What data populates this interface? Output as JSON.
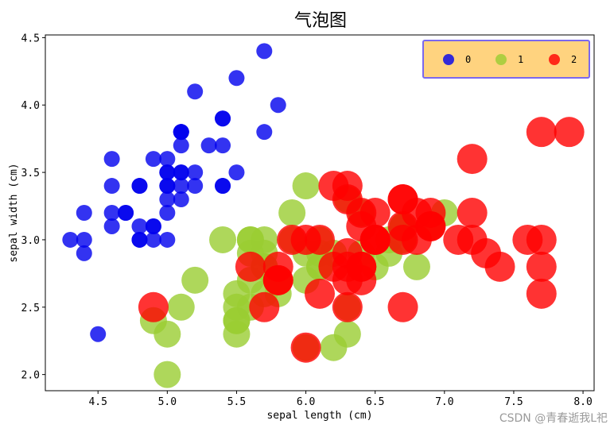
{
  "chart_data": {
    "type": "scatter",
    "title": "气泡图",
    "xlabel": "sepal length (cm)",
    "ylabel": "sepal width (cm)",
    "xlim": [
      4.12,
      8.08
    ],
    "ylim": [
      1.88,
      4.52
    ],
    "xticks": [
      4.5,
      5.0,
      5.5,
      6.0,
      6.5,
      7.0,
      7.5,
      8.0
    ],
    "xtick_labels": [
      "4.5",
      "5.0",
      "5.5",
      "6.0",
      "6.5",
      "7.0",
      "7.5",
      "8.0"
    ],
    "yticks": [
      2.0,
      2.5,
      3.0,
      3.5,
      4.0,
      4.5
    ],
    "ytick_labels": [
      "2.0",
      "2.5",
      "3.0",
      "3.5",
      "4.0",
      "4.5"
    ],
    "grid": false,
    "legend_position": "top-right",
    "legend_background": "#ffd37f",
    "legend_border": "#7b68ee",
    "series": [
      {
        "name": "0",
        "color": "#0000ee",
        "points": [
          [
            5.1,
            3.5
          ],
          [
            4.9,
            3.0
          ],
          [
            4.7,
            3.2
          ],
          [
            4.6,
            3.1
          ],
          [
            5.0,
            3.6
          ],
          [
            5.4,
            3.9
          ],
          [
            4.6,
            3.4
          ],
          [
            5.0,
            3.4
          ],
          [
            4.4,
            2.9
          ],
          [
            4.9,
            3.1
          ],
          [
            5.4,
            3.7
          ],
          [
            4.8,
            3.4
          ],
          [
            4.8,
            3.0
          ],
          [
            4.3,
            3.0
          ],
          [
            5.8,
            4.0
          ],
          [
            5.7,
            4.4
          ],
          [
            5.4,
            3.9
          ],
          [
            5.1,
            3.5
          ],
          [
            5.7,
            3.8
          ],
          [
            5.1,
            3.8
          ],
          [
            5.4,
            3.4
          ],
          [
            5.1,
            3.7
          ],
          [
            4.6,
            3.6
          ],
          [
            5.1,
            3.3
          ],
          [
            4.8,
            3.4
          ],
          [
            5.0,
            3.0
          ],
          [
            5.0,
            3.4
          ],
          [
            5.2,
            3.5
          ],
          [
            5.2,
            3.4
          ],
          [
            4.7,
            3.2
          ],
          [
            4.8,
            3.1
          ],
          [
            5.4,
            3.4
          ],
          [
            5.2,
            4.1
          ],
          [
            5.5,
            4.2
          ],
          [
            4.9,
            3.1
          ],
          [
            5.0,
            3.2
          ],
          [
            5.5,
            3.5
          ],
          [
            4.9,
            3.6
          ],
          [
            4.4,
            3.0
          ],
          [
            5.1,
            3.4
          ],
          [
            5.0,
            3.5
          ],
          [
            4.5,
            2.3
          ],
          [
            4.4,
            3.2
          ],
          [
            5.0,
            3.5
          ],
          [
            5.1,
            3.8
          ],
          [
            4.8,
            3.0
          ],
          [
            5.1,
            3.8
          ],
          [
            4.6,
            3.2
          ],
          [
            5.3,
            3.7
          ],
          [
            5.0,
            3.3
          ]
        ]
      },
      {
        "name": "1",
        "color": "#9acd32",
        "points": [
          [
            7.0,
            3.2
          ],
          [
            6.4,
            3.2
          ],
          [
            6.9,
            3.1
          ],
          [
            5.5,
            2.3
          ],
          [
            6.5,
            2.8
          ],
          [
            5.7,
            2.8
          ],
          [
            6.3,
            3.3
          ],
          [
            4.9,
            2.4
          ],
          [
            6.6,
            2.9
          ],
          [
            5.2,
            2.7
          ],
          [
            5.0,
            2.0
          ],
          [
            5.9,
            3.0
          ],
          [
            6.0,
            2.2
          ],
          [
            6.1,
            2.9
          ],
          [
            5.6,
            2.9
          ],
          [
            6.7,
            3.1
          ],
          [
            5.6,
            3.0
          ],
          [
            5.8,
            2.7
          ],
          [
            6.2,
            2.2
          ],
          [
            5.6,
            2.5
          ],
          [
            5.9,
            3.2
          ],
          [
            6.1,
            2.8
          ],
          [
            6.3,
            2.5
          ],
          [
            6.1,
            2.8
          ],
          [
            6.4,
            2.9
          ],
          [
            6.6,
            3.0
          ],
          [
            6.8,
            2.8
          ],
          [
            6.7,
            3.0
          ],
          [
            6.0,
            2.9
          ],
          [
            5.7,
            2.6
          ],
          [
            5.5,
            2.4
          ],
          [
            5.5,
            2.4
          ],
          [
            5.8,
            2.7
          ],
          [
            6.0,
            2.7
          ],
          [
            5.4,
            3.0
          ],
          [
            6.0,
            3.4
          ],
          [
            6.7,
            3.1
          ],
          [
            6.3,
            2.3
          ],
          [
            5.6,
            3.0
          ],
          [
            5.5,
            2.5
          ],
          [
            5.5,
            2.6
          ],
          [
            6.1,
            3.0
          ],
          [
            5.8,
            2.6
          ],
          [
            5.0,
            2.3
          ],
          [
            5.6,
            2.7
          ],
          [
            5.7,
            3.0
          ],
          [
            5.7,
            2.9
          ],
          [
            6.2,
            2.9
          ],
          [
            5.1,
            2.5
          ],
          [
            5.7,
            2.8
          ]
        ]
      },
      {
        "name": "2",
        "color": "#ff0000",
        "points": [
          [
            6.3,
            3.3
          ],
          [
            5.8,
            2.7
          ],
          [
            7.1,
            3.0
          ],
          [
            6.3,
            2.9
          ],
          [
            6.5,
            3.0
          ],
          [
            7.6,
            3.0
          ],
          [
            4.9,
            2.5
          ],
          [
            7.3,
            2.9
          ],
          [
            6.7,
            2.5
          ],
          [
            7.2,
            3.6
          ],
          [
            6.5,
            3.2
          ],
          [
            6.4,
            2.7
          ],
          [
            6.8,
            3.0
          ],
          [
            5.7,
            2.5
          ],
          [
            5.8,
            2.8
          ],
          [
            6.4,
            3.2
          ],
          [
            6.5,
            3.0
          ],
          [
            7.7,
            3.8
          ],
          [
            7.7,
            2.6
          ],
          [
            6.0,
            2.2
          ],
          [
            6.9,
            3.2
          ],
          [
            5.6,
            2.8
          ],
          [
            7.7,
            2.8
          ],
          [
            6.3,
            2.7
          ],
          [
            6.7,
            3.3
          ],
          [
            7.2,
            3.2
          ],
          [
            6.2,
            2.8
          ],
          [
            6.1,
            3.0
          ],
          [
            6.4,
            2.8
          ],
          [
            7.2,
            3.0
          ],
          [
            7.4,
            2.8
          ],
          [
            7.9,
            3.8
          ],
          [
            6.4,
            2.8
          ],
          [
            6.3,
            2.8
          ],
          [
            6.1,
            2.6
          ],
          [
            7.7,
            3.0
          ],
          [
            6.3,
            3.4
          ],
          [
            6.4,
            3.1
          ],
          [
            6.0,
            3.0
          ],
          [
            6.9,
            3.1
          ],
          [
            6.7,
            3.1
          ],
          [
            6.9,
            3.1
          ],
          [
            5.8,
            2.7
          ],
          [
            6.8,
            3.2
          ],
          [
            6.7,
            3.3
          ],
          [
            6.7,
            3.0
          ],
          [
            6.3,
            2.5
          ],
          [
            6.5,
            3.0
          ],
          [
            6.2,
            3.4
          ],
          [
            5.9,
            3.0
          ]
        ]
      }
    ]
  },
  "watermark": "CSDN @青春逝我L祀"
}
